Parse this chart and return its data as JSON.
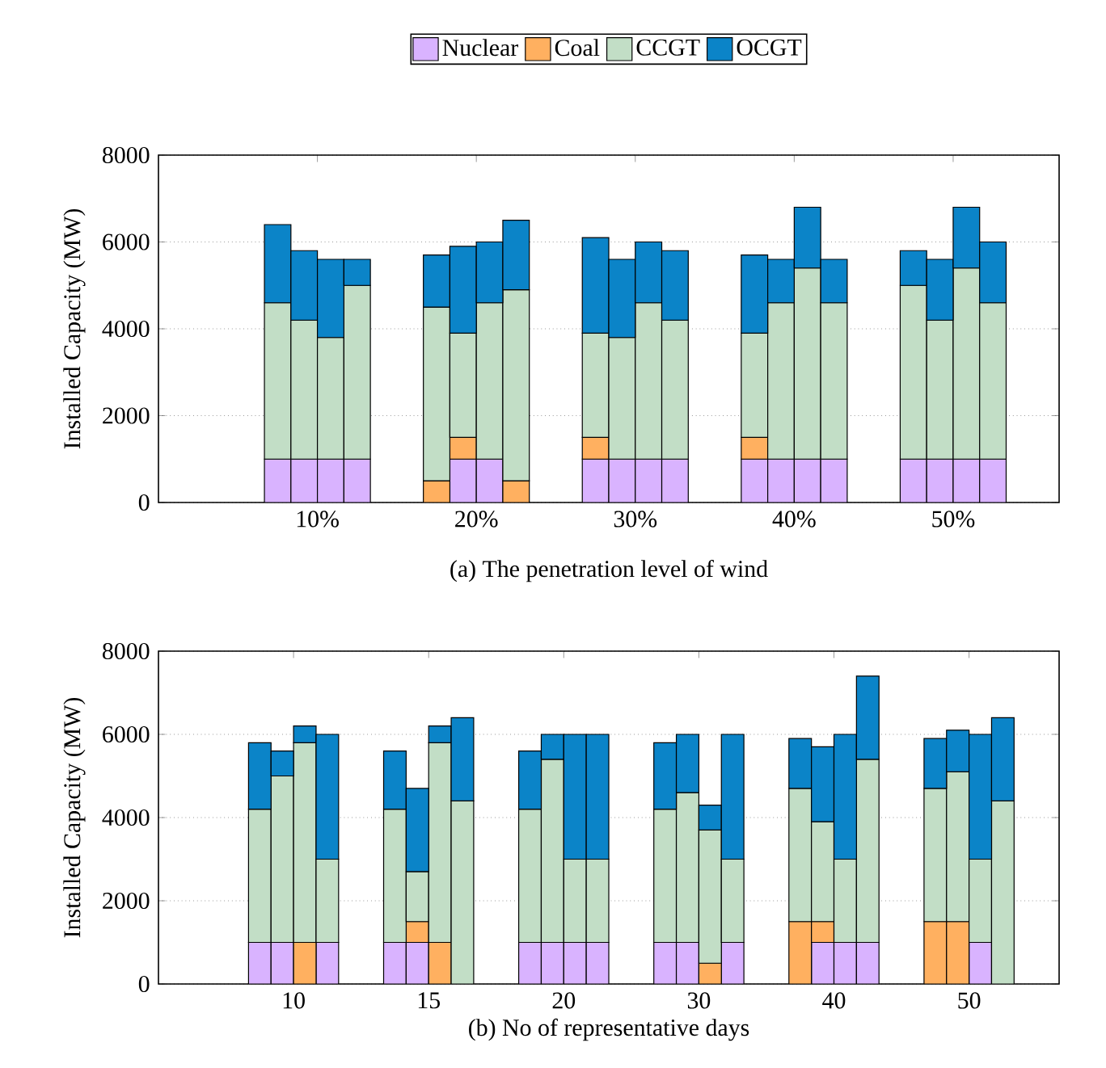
{
  "chart_data": [
    {
      "type": "bar",
      "stacked": true,
      "xlabel": "(a) The penetration level of wind",
      "ylabel": "Installed Capacity (MW)",
      "ylim": [
        0,
        8000
      ],
      "yticks": [
        0,
        2000,
        4000,
        6000,
        8000
      ],
      "grid": "y",
      "legend": "top",
      "categories": [
        null,
        null,
        null,
        null,
        null,
        null,
        "10%",
        null,
        null,
        null,
        null,
        null,
        "20%",
        null,
        null,
        null,
        null,
        null,
        "30%",
        null,
        null,
        null,
        null,
        null,
        "40%",
        null,
        null,
        null,
        null,
        null,
        "50%",
        null,
        null,
        null
      ],
      "series": [
        {
          "name": "Nuclear",
          "color": "#d9b3ff",
          "values": [
            null,
            null,
            null,
            null,
            1000,
            1000,
            1000,
            1000,
            null,
            null,
            0,
            1000,
            1000,
            0,
            null,
            null,
            1000,
            1000,
            1000,
            1000,
            null,
            null,
            1000,
            1000,
            1000,
            1000,
            null,
            null,
            1000,
            1000,
            1000,
            1000,
            null,
            null
          ]
        },
        {
          "name": "Coal",
          "color": "#ffb060",
          "values": [
            null,
            null,
            null,
            null,
            0,
            0,
            0,
            0,
            null,
            null,
            500,
            500,
            0,
            500,
            null,
            null,
            500,
            0,
            0,
            0,
            null,
            null,
            500,
            0,
            0,
            0,
            null,
            null,
            0,
            0,
            0,
            0,
            null,
            null
          ]
        },
        {
          "name": "CCGT",
          "color": "#c2dec6",
          "values": [
            null,
            null,
            null,
            null,
            3600,
            3200,
            2800,
            4000,
            null,
            null,
            4000,
            2400,
            3600,
            4400,
            null,
            null,
            2400,
            2800,
            3600,
            3200,
            null,
            null,
            2400,
            3600,
            4400,
            3600,
            null,
            null,
            4000,
            3200,
            4400,
            3600,
            null,
            null
          ]
        },
        {
          "name": "OCGT",
          "color": "#0b84c8",
          "values": [
            null,
            null,
            null,
            null,
            1800,
            1600,
            1800,
            600,
            null,
            null,
            1200,
            2000,
            1400,
            1600,
            null,
            null,
            2200,
            1800,
            1400,
            1600,
            null,
            null,
            1800,
            1000,
            1400,
            1000,
            null,
            null,
            800,
            1400,
            1400,
            1400,
            null,
            null
          ]
        }
      ]
    },
    {
      "type": "bar",
      "stacked": true,
      "xlabel": "(b) No of representative days",
      "ylabel": "Installed Capacity (MW)",
      "ylim": [
        0,
        8000
      ],
      "yticks": [
        0,
        2000,
        4000,
        6000,
        8000
      ],
      "grid": "y",
      "categories": [
        null,
        null,
        null,
        null,
        null,
        null,
        "10",
        null,
        null,
        null,
        null,
        null,
        "15",
        null,
        null,
        null,
        null,
        null,
        "20",
        null,
        null,
        null,
        null,
        null,
        "30",
        null,
        null,
        null,
        null,
        null,
        "40",
        null,
        null,
        null,
        null,
        null,
        "50",
        null,
        null,
        null
      ],
      "series": [
        {
          "color": "#d9b3ff",
          "values": [
            null,
            null,
            null,
            null,
            1000,
            1000,
            0,
            1000,
            null,
            null,
            1000,
            1000,
            0,
            0,
            null,
            null,
            1000,
            1000,
            1000,
            1000,
            null,
            null,
            1000,
            1000,
            0,
            1000,
            null,
            null,
            0,
            1000,
            1000,
            1000,
            null,
            null,
            0,
            0,
            1000,
            0,
            null,
            null
          ]
        },
        {
          "color": "#ffb060",
          "values": [
            null,
            null,
            null,
            null,
            0,
            0,
            1000,
            0,
            null,
            null,
            0,
            500,
            1000,
            0,
            null,
            null,
            0,
            0,
            0,
            0,
            null,
            null,
            0,
            0,
            500,
            0,
            null,
            null,
            1500,
            500,
            0,
            0,
            null,
            null,
            1500,
            1500,
            0,
            0,
            null,
            null
          ]
        },
        {
          "color": "#c2dec6",
          "values": [
            null,
            null,
            null,
            null,
            3200,
            4000,
            4800,
            2000,
            null,
            null,
            3200,
            1200,
            4800,
            4400,
            null,
            null,
            3200,
            4400,
            2000,
            2000,
            null,
            null,
            3200,
            3600,
            3200,
            2000,
            null,
            null,
            3200,
            2400,
            2000,
            4400,
            null,
            null,
            3200,
            3600,
            2000,
            4400,
            null,
            null
          ]
        },
        {
          "color": "#0b84c8",
          "values": [
            null,
            null,
            null,
            null,
            1600,
            600,
            400,
            3000,
            null,
            null,
            1400,
            2000,
            400,
            2000,
            null,
            null,
            1400,
            600,
            3000,
            3000,
            null,
            null,
            1600,
            1400,
            600,
            3000,
            null,
            null,
            1200,
            1800,
            3000,
            2000,
            null,
            null,
            1200,
            1000,
            3000,
            2000,
            null,
            null
          ]
        }
      ]
    }
  ]
}
